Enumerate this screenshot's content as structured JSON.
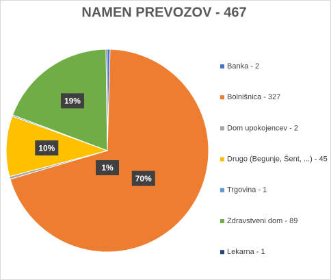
{
  "chart_data": {
    "type": "pie",
    "title": "NAMEN PREVOZOV - 467",
    "categories": [
      "Banka - 2",
      "Bolnišnica - 327",
      "Dom upokojencev - 2",
      "Drugo (Begunje, Šent, ...) - 45",
      "Trgovina - 1",
      "Zdravstveni dom - 89",
      "Lekarna - 1"
    ],
    "values": [
      2,
      327,
      2,
      45,
      1,
      89,
      1
    ],
    "value_labels": [
      null,
      "70%",
      "1%",
      "10%",
      null,
      "19%",
      null
    ],
    "colors": [
      "#4472c4",
      "#ed7d31",
      "#a5a5a5",
      "#ffc000",
      "#5b9bd5",
      "#70ad47",
      "#264478"
    ],
    "legend": "right"
  }
}
